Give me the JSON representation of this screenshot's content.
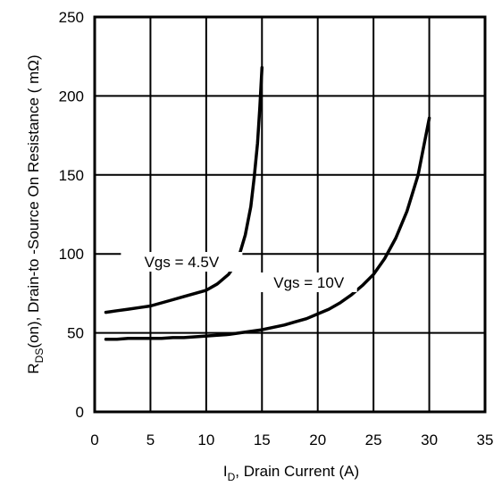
{
  "chart_data": {
    "type": "line",
    "title": "",
    "xlabel": {
      "main": "I",
      "sub": "D",
      "rest": ", Drain Current (A)"
    },
    "ylabel": {
      "main": "R",
      "sub": "DS",
      "rest": "(on),  Drain-to -Source On Resistance ( mΩ)"
    },
    "xlim": [
      0,
      35
    ],
    "ylim": [
      0,
      250
    ],
    "x_ticks": [
      0,
      5,
      10,
      15,
      20,
      25,
      30,
      35
    ],
    "y_ticks": [
      0,
      50,
      100,
      150,
      200,
      250
    ],
    "grid": true,
    "series": [
      {
        "name": "Vgs = 4.5V",
        "x": [
          1,
          2,
          3,
          4,
          5,
          6,
          7,
          8,
          9,
          10,
          11,
          12,
          12.5,
          13,
          13.5,
          14,
          14.3,
          14.6,
          14.8,
          15
        ],
        "y": [
          63,
          64,
          65,
          66,
          67,
          69,
          71,
          73,
          75,
          77,
          81,
          87,
          92,
          100,
          112,
          130,
          148,
          170,
          192,
          218
        ]
      },
      {
        "name": "Vgs = 10V",
        "x": [
          1,
          2,
          3,
          4,
          5,
          6,
          7,
          8,
          9,
          10,
          11,
          12,
          13,
          14,
          15,
          16,
          17,
          18,
          19,
          20,
          21,
          22,
          23,
          24,
          25,
          26,
          27,
          28,
          29,
          30
        ],
        "y": [
          46,
          46,
          46.5,
          46.5,
          46.5,
          46.5,
          47,
          47,
          47.5,
          48,
          48.5,
          49,
          50,
          51,
          52,
          53.5,
          55,
          57,
          59,
          62,
          65,
          69,
          74,
          80,
          87,
          97,
          110,
          127,
          150,
          186
        ]
      }
    ]
  }
}
